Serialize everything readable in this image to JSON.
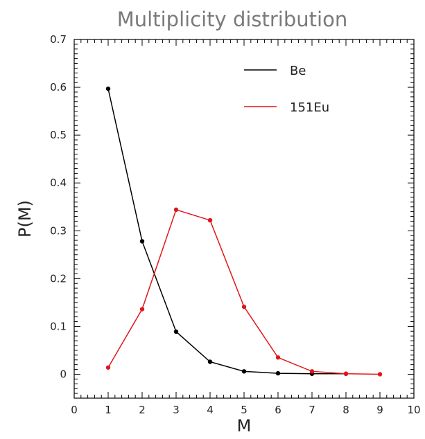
{
  "chart_data": {
    "type": "line",
    "title": "Multiplicity distribution",
    "xlabel": "M",
    "ylabel": "P(M)",
    "xlim": [
      0,
      10
    ],
    "ylim": [
      -0.05,
      0.7
    ],
    "x_ticks": [
      0,
      1,
      2,
      3,
      4,
      5,
      6,
      7,
      8,
      9,
      10
    ],
    "y_ticks": [
      0,
      0.1,
      0.2,
      0.3,
      0.4,
      0.5,
      0.6,
      0.7
    ],
    "x_tick_labels": [
      "0",
      "1",
      "2",
      "3",
      "4",
      "5",
      "6",
      "7",
      "8",
      "9",
      "10"
    ],
    "y_tick_labels": [
      "0",
      "0.1",
      "0.2",
      "0.3",
      "0.4",
      "0.5",
      "0.6",
      "0.7"
    ],
    "grid": false,
    "legend_position": "top-right",
    "series": [
      {
        "name": "Be",
        "color": "#000000",
        "x": [
          1,
          2,
          3,
          4,
          5,
          6,
          7,
          8
        ],
        "y": [
          0.597,
          0.278,
          0.089,
          0.026,
          0.006,
          0.002,
          0.001,
          0.001
        ]
      },
      {
        "name": "151Eu",
        "color": "#e0161b",
        "x": [
          1,
          2,
          3,
          4,
          5,
          6,
          7,
          8,
          9
        ],
        "y": [
          0.014,
          0.136,
          0.344,
          0.322,
          0.141,
          0.035,
          0.006,
          0.001,
          0.0
        ]
      }
    ]
  }
}
